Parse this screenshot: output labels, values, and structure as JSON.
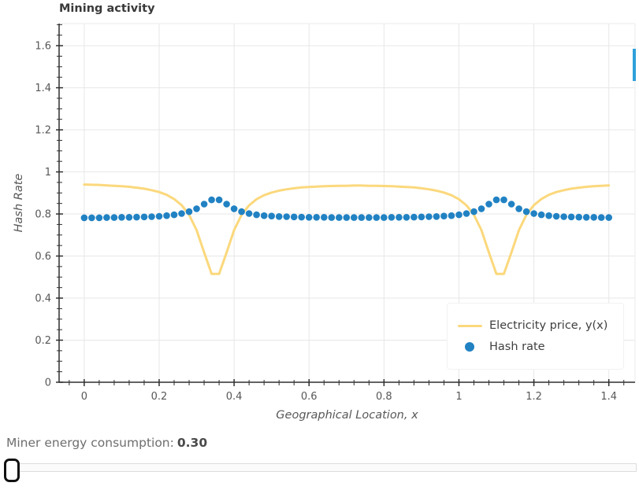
{
  "title": "Mining activity",
  "colors": {
    "line": "#fbd87c",
    "marker": "#2182c3",
    "grid": "#e7e7e7",
    "spine": "#2f2f2f",
    "light_spine": "#ebebeb",
    "tick_label": "#575757",
    "edge_indicator": "#2fa0da"
  },
  "chart_data": {
    "type": "line",
    "title": "Mining activity",
    "xlabel": "Geographical Location, x",
    "ylabel": "Hash Rate",
    "xlim": [
      -0.067,
      1.47
    ],
    "ylim": [
      0,
      1.705
    ],
    "grid": true,
    "legend_position": "lower right",
    "xticks": {
      "values": [
        0,
        0.2,
        0.4,
        0.6,
        0.8,
        1,
        1.2,
        1.4
      ],
      "labels": [
        "0",
        "0.2",
        "0.4",
        "0.6",
        "0.8",
        "1",
        "1.2",
        "1.4"
      ],
      "minor_step": 0.04
    },
    "yticks": {
      "values": [
        0,
        0.2,
        0.4,
        0.6,
        0.8,
        1,
        1.2,
        1.4,
        1.6
      ],
      "labels": [
        "0",
        "0.2",
        "0.4",
        "0.6",
        "0.8",
        "1",
        "1.2",
        "1.4",
        "1.6"
      ],
      "minor_step": 0.05
    },
    "x": [
      0.0,
      0.02,
      0.04,
      0.06,
      0.08,
      0.1,
      0.12,
      0.14,
      0.16,
      0.18,
      0.2,
      0.22,
      0.24,
      0.26,
      0.28,
      0.3,
      0.32,
      0.34,
      0.36,
      0.38,
      0.4,
      0.42,
      0.44,
      0.46,
      0.48,
      0.5,
      0.52,
      0.54,
      0.56,
      0.58,
      0.6,
      0.62,
      0.64,
      0.66,
      0.68,
      0.7,
      0.72,
      0.74,
      0.76,
      0.78,
      0.8,
      0.82,
      0.84,
      0.86,
      0.88,
      0.9,
      0.92,
      0.94,
      0.96,
      0.98,
      1.0,
      1.02,
      1.04,
      1.06,
      1.08,
      1.1,
      1.12,
      1.14,
      1.16,
      1.18,
      1.2,
      1.22,
      1.24,
      1.26,
      1.28,
      1.3,
      1.32,
      1.34,
      1.36,
      1.38,
      1.4
    ],
    "series": [
      {
        "name": "Electricity price, y(x)",
        "mode": "line",
        "color": "#fbd87c",
        "values": [
          0.94,
          0.939,
          0.938,
          0.936,
          0.934,
          0.932,
          0.929,
          0.925,
          0.92,
          0.913,
          0.904,
          0.891,
          0.871,
          0.842,
          0.796,
          0.723,
          0.617,
          0.515,
          0.515,
          0.617,
          0.723,
          0.796,
          0.841,
          0.87,
          0.889,
          0.902,
          0.911,
          0.917,
          0.922,
          0.926,
          0.928,
          0.93,
          0.932,
          0.933,
          0.934,
          0.934,
          0.935,
          0.935,
          0.934,
          0.934,
          0.933,
          0.932,
          0.93,
          0.928,
          0.926,
          0.922,
          0.917,
          0.911,
          0.902,
          0.889,
          0.87,
          0.841,
          0.796,
          0.723,
          0.617,
          0.515,
          0.515,
          0.617,
          0.723,
          0.796,
          0.842,
          0.871,
          0.891,
          0.904,
          0.913,
          0.92,
          0.925,
          0.929,
          0.932,
          0.934,
          0.936
        ]
      },
      {
        "name": "Hash rate",
        "mode": "markers",
        "color": "#2182c3",
        "values": [
          0.782,
          0.782,
          0.782,
          0.783,
          0.783,
          0.784,
          0.784,
          0.785,
          0.786,
          0.787,
          0.789,
          0.792,
          0.796,
          0.802,
          0.811,
          0.825,
          0.847,
          0.867,
          0.867,
          0.847,
          0.825,
          0.811,
          0.802,
          0.796,
          0.792,
          0.79,
          0.788,
          0.787,
          0.786,
          0.785,
          0.784,
          0.784,
          0.784,
          0.783,
          0.783,
          0.783,
          0.783,
          0.783,
          0.783,
          0.783,
          0.783,
          0.784,
          0.784,
          0.784,
          0.785,
          0.786,
          0.787,
          0.788,
          0.79,
          0.792,
          0.796,
          0.802,
          0.811,
          0.825,
          0.847,
          0.867,
          0.867,
          0.847,
          0.825,
          0.811,
          0.802,
          0.796,
          0.792,
          0.789,
          0.787,
          0.786,
          0.785,
          0.784,
          0.784,
          0.783,
          0.783
        ]
      }
    ]
  },
  "footer": {
    "label": "Miner energy consumption:",
    "value": "0.30"
  },
  "slider": {
    "value": "0.30",
    "position": "min"
  }
}
